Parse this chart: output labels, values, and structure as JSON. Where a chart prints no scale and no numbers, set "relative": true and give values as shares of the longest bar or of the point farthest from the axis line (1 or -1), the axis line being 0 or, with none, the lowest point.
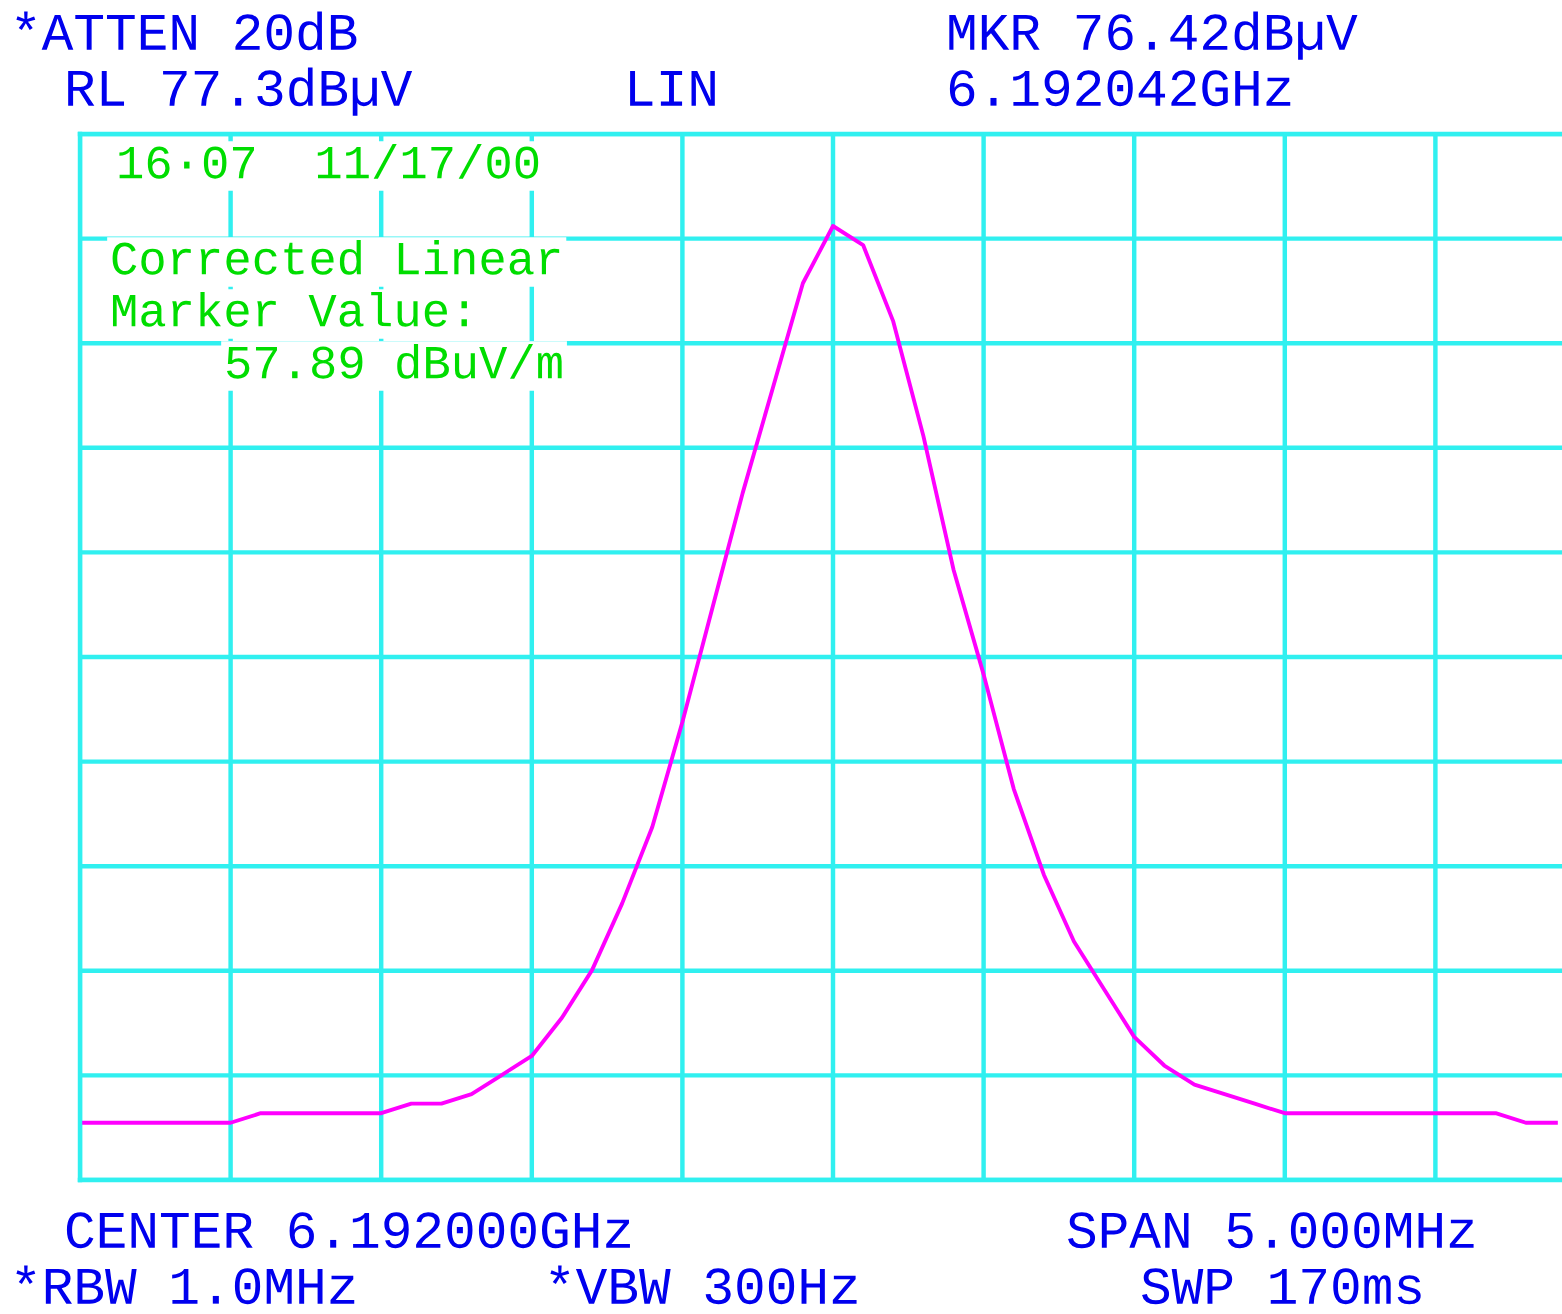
{
  "chart_data": {
    "type": "line",
    "relative": true,
    "grid": true,
    "tick_labels": false,
    "marker": "none",
    "line_style": "solid",
    "categories": [
      null,
      null,
      null,
      null,
      null,
      null,
      null,
      null,
      null,
      null,
      null,
      null,
      null,
      null,
      null,
      null,
      null,
      null,
      null,
      null,
      null,
      null,
      null,
      null,
      null,
      null,
      null,
      null,
      null,
      null,
      null,
      null,
      null,
      null,
      null,
      null,
      null,
      null,
      null,
      null,
      null,
      null,
      null,
      null,
      null,
      null,
      null,
      null,
      null,
      null
    ],
    "series": [
      {
        "color": "#ff00ff",
        "values": [
          0.06,
          0.06,
          0.06,
          0.06,
          0.06,
          0.06,
          0.07,
          0.07,
          0.07,
          0.07,
          0.07,
          0.08,
          0.08,
          0.09,
          0.11,
          0.13,
          0.17,
          0.22,
          0.29,
          0.37,
          0.48,
          0.6,
          0.72,
          0.83,
          0.94,
          1.0,
          0.98,
          0.9,
          0.78,
          0.64,
          0.53,
          0.41,
          0.32,
          0.25,
          0.2,
          0.15,
          0.12,
          0.1,
          0.09,
          0.08,
          0.07,
          0.07,
          0.07,
          0.07,
          0.07,
          0.07,
          0.07,
          0.07,
          0.06,
          0.06
        ]
      }
    ],
    "annotations": [
      "*ATTEN 20dB",
      "RL 77.3dBµV",
      "LIN",
      "MKR 76.42dBµV",
      "6.192042GHz",
      "16·07  11/17/00",
      "Corrected Linear",
      "Marker Value:",
      "57.89 dBuV/m",
      "CENTER 6.192000GHz",
      "SPAN 5.000MHz",
      "*RBW 1.0MHz",
      "*VBW 300Hz",
      "SWP 170ms"
    ]
  }
}
